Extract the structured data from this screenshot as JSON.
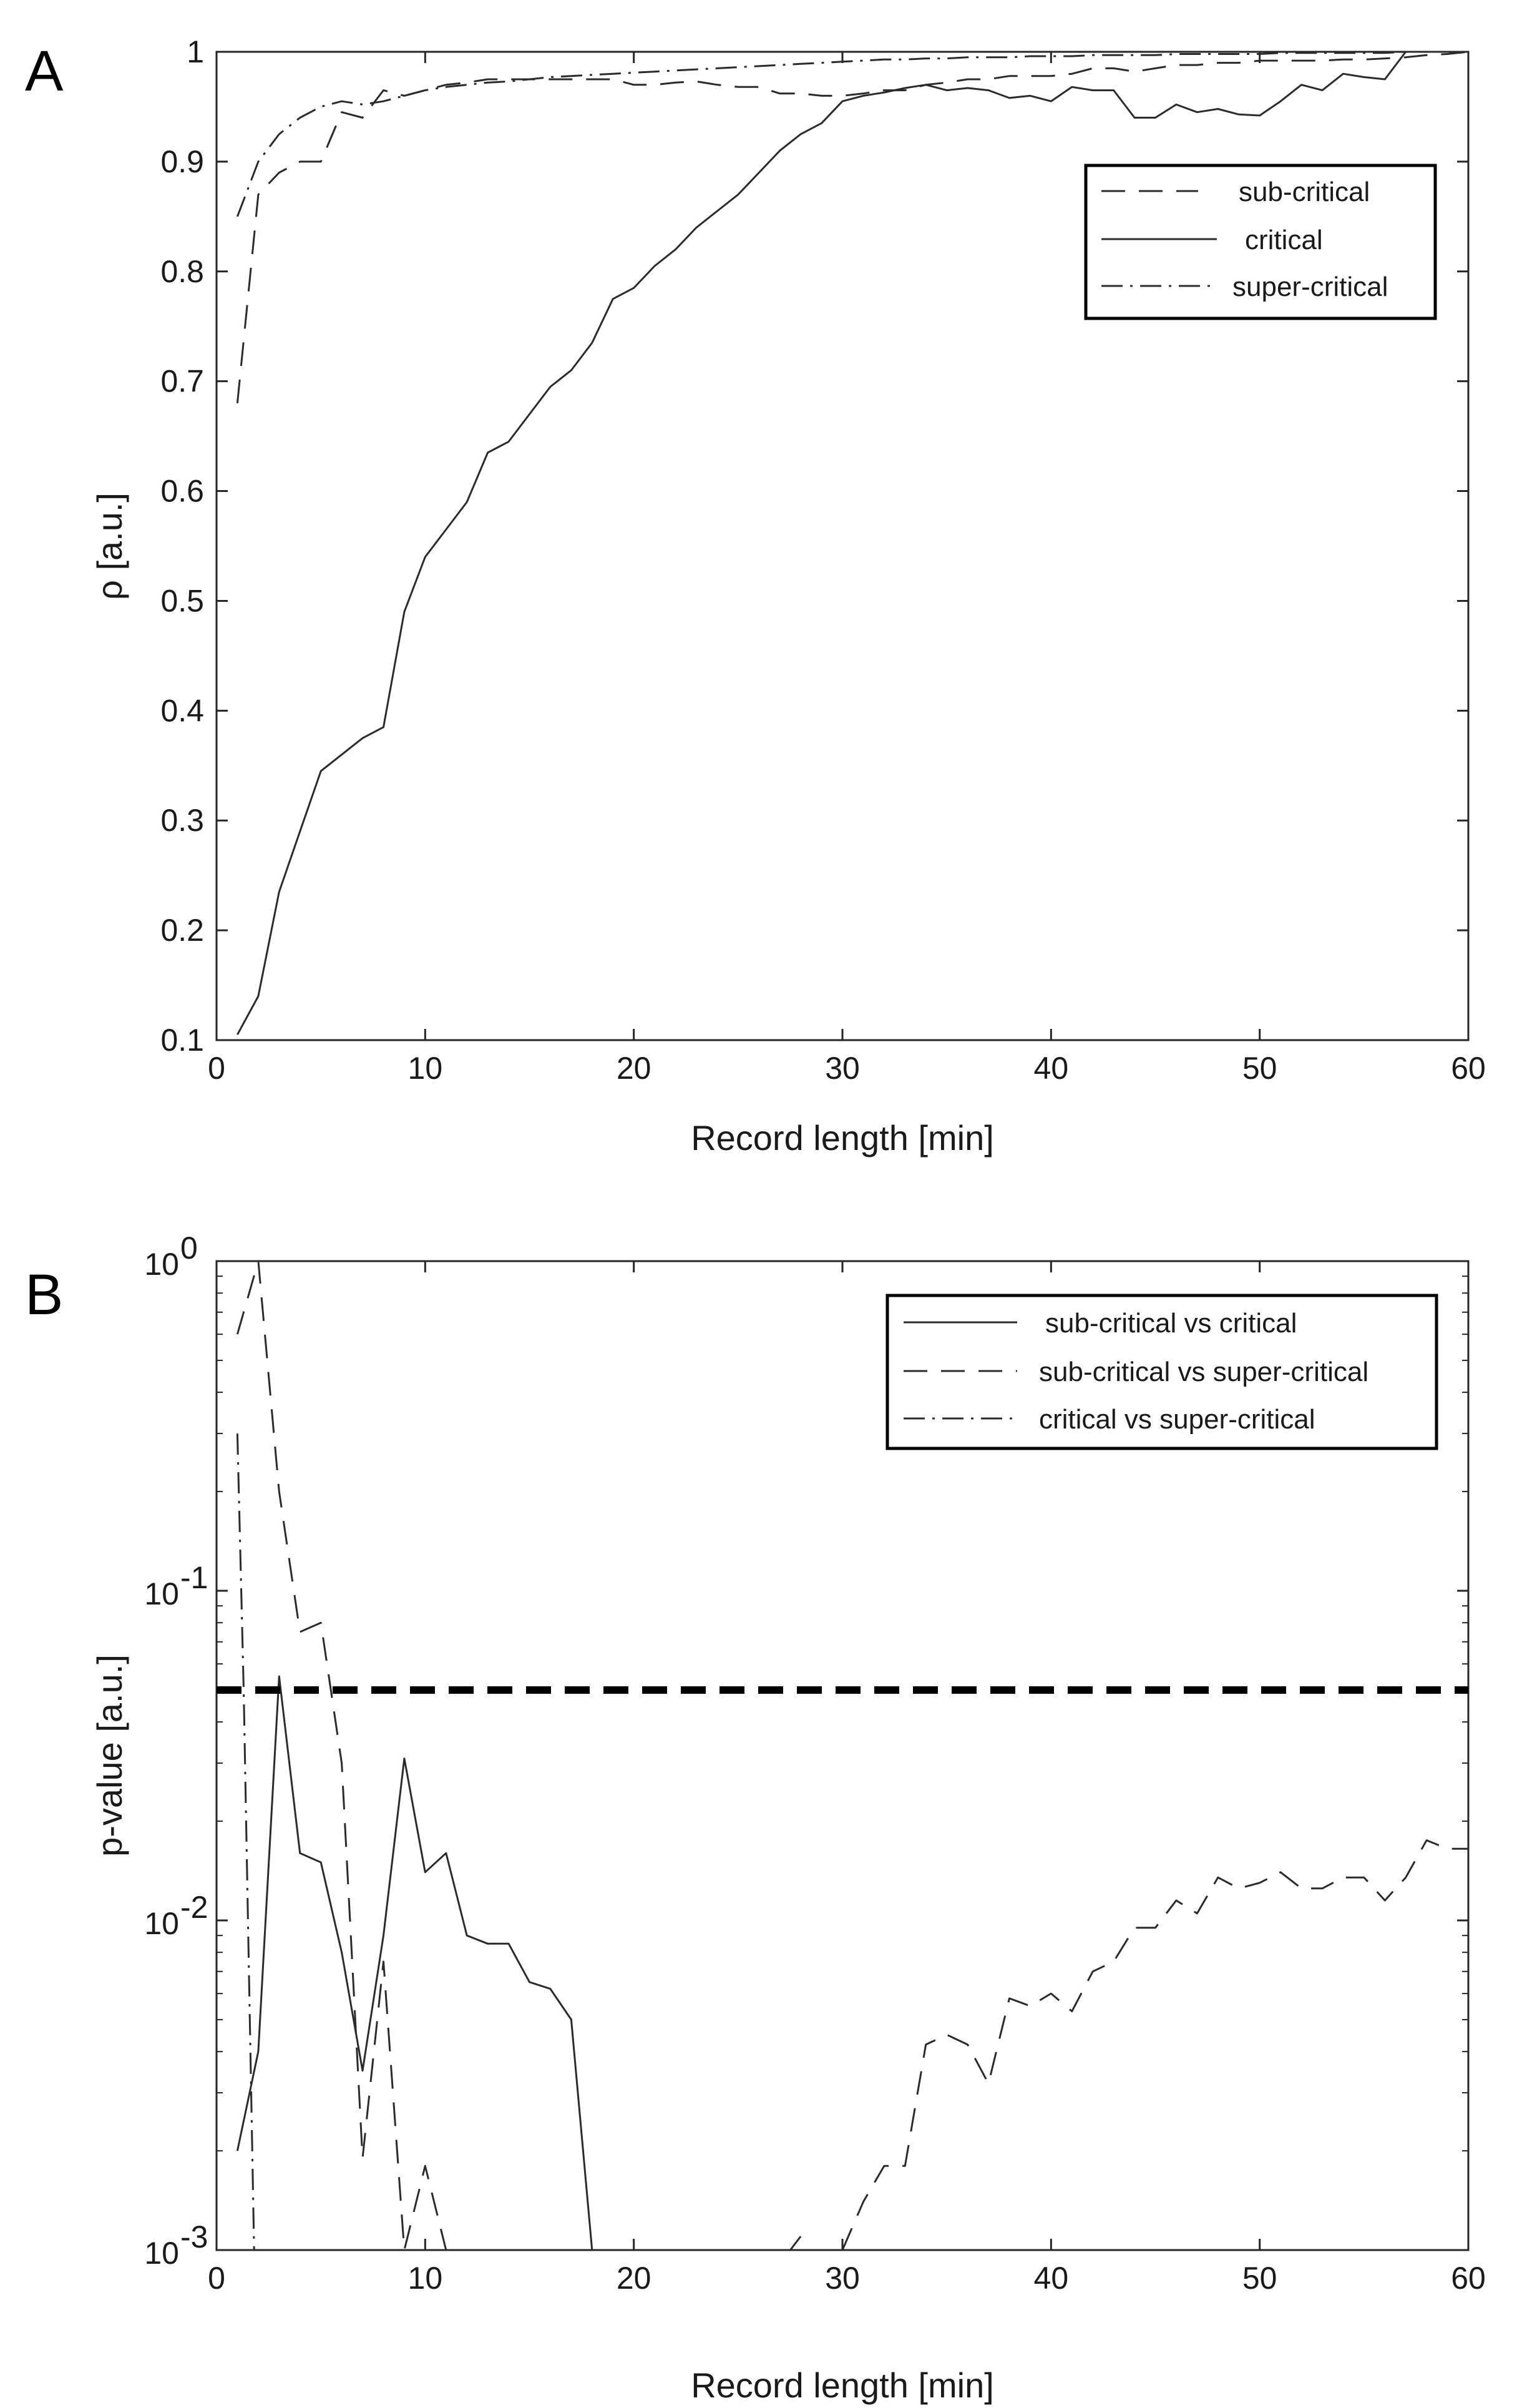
{
  "chart_data": [
    {
      "type": "line",
      "panel_label": "A",
      "xlabel": "Record length [min]",
      "ylabel": "ρ [a.u.]",
      "xlim": [
        0,
        60
      ],
      "ylim": [
        0.1,
        1
      ],
      "xticks": [
        0,
        10,
        20,
        30,
        40,
        50,
        60
      ],
      "yticks": [
        0.1,
        0.2,
        0.3,
        0.4,
        0.5,
        0.6,
        0.7,
        0.8,
        0.9,
        1
      ],
      "ytick_labels": [
        "0.1",
        "0.2",
        "0.3",
        "0.4",
        "0.5",
        "0.6",
        "0.7",
        "0.8",
        "0.9",
        "1"
      ],
      "legend_position": "top-right",
      "series": [
        {
          "name": "sub-critical",
          "style": "dashed",
          "x": [
            1,
            2,
            3,
            4,
            5,
            6,
            7,
            8,
            9,
            10,
            11,
            12,
            13,
            14,
            15,
            16,
            17,
            18,
            19,
            20,
            21,
            22,
            23,
            24,
            25,
            26,
            27,
            28,
            29,
            30,
            31,
            32,
            33,
            34,
            35,
            36,
            37,
            38,
            39,
            40,
            41,
            42,
            43,
            44,
            45,
            46,
            47,
            48,
            49,
            50,
            51,
            52,
            53,
            54,
            55,
            56,
            57,
            58,
            59,
            60
          ],
          "y": [
            0.68,
            0.87,
            0.89,
            0.9,
            0.9,
            0.945,
            0.94,
            0.965,
            0.96,
            0.965,
            0.97,
            0.972,
            0.975,
            0.975,
            0.975,
            0.975,
            0.975,
            0.975,
            0.975,
            0.97,
            0.97,
            0.972,
            0.973,
            0.97,
            0.968,
            0.968,
            0.962,
            0.962,
            0.96,
            0.96,
            0.962,
            0.965,
            0.965,
            0.97,
            0.972,
            0.975,
            0.975,
            0.978,
            0.978,
            0.978,
            0.98,
            0.985,
            0.985,
            0.982,
            0.985,
            0.988,
            0.988,
            0.99,
            0.99,
            0.992,
            0.992,
            0.992,
            0.992,
            0.993,
            0.993,
            0.994,
            0.995,
            0.997,
            0.998,
            1.0
          ]
        },
        {
          "name": "critical",
          "style": "solid",
          "x": [
            1,
            2,
            3,
            4,
            5,
            6,
            7,
            8,
            9,
            10,
            11,
            12,
            13,
            14,
            15,
            16,
            17,
            18,
            19,
            20,
            21,
            22,
            23,
            24,
            25,
            26,
            27,
            28,
            29,
            30,
            31,
            32,
            33,
            34,
            35,
            36,
            37,
            38,
            39,
            40,
            41,
            42,
            43,
            44,
            45,
            46,
            47,
            48,
            49,
            50,
            51,
            52,
            53,
            54,
            55,
            56,
            57,
            58,
            59,
            60
          ],
          "y": [
            0.105,
            0.14,
            0.235,
            0.29,
            0.345,
            0.36,
            0.375,
            0.385,
            0.49,
            0.54,
            0.565,
            0.59,
            0.635,
            0.645,
            0.67,
            0.695,
            0.71,
            0.735,
            0.775,
            0.785,
            0.805,
            0.82,
            0.84,
            0.855,
            0.87,
            0.89,
            0.91,
            0.925,
            0.935,
            0.955,
            0.96,
            0.963,
            0.967,
            0.97,
            0.965,
            0.967,
            0.965,
            0.958,
            0.96,
            0.955,
            0.968,
            0.965,
            0.965,
            0.94,
            0.94,
            0.952,
            0.945,
            0.948,
            0.943,
            0.942,
            0.955,
            0.97,
            0.965,
            0.98,
            0.977,
            0.975,
            1.0,
            1.0,
            1.0,
            1.0
          ]
        },
        {
          "name": "super-critical",
          "style": "dashdot",
          "x": [
            1,
            2,
            3,
            4,
            5,
            6,
            7,
            8,
            9,
            10,
            11,
            12,
            13,
            14,
            15,
            16,
            17,
            18,
            19,
            20,
            21,
            22,
            23,
            24,
            25,
            26,
            27,
            28,
            29,
            30,
            31,
            32,
            33,
            34,
            35,
            36,
            37,
            38,
            39,
            40,
            41,
            42,
            43,
            44,
            45,
            46,
            47,
            48,
            49,
            50,
            51,
            52,
            53,
            54,
            55,
            56,
            57,
            58,
            59,
            60
          ],
          "y": [
            0.85,
            0.9,
            0.925,
            0.94,
            0.95,
            0.955,
            0.952,
            0.955,
            0.96,
            0.965,
            0.968,
            0.97,
            0.972,
            0.973,
            0.975,
            0.977,
            0.978,
            0.979,
            0.98,
            0.981,
            0.982,
            0.983,
            0.984,
            0.985,
            0.986,
            0.987,
            0.988,
            0.989,
            0.99,
            0.991,
            0.992,
            0.993,
            0.993,
            0.994,
            0.994,
            0.995,
            0.995,
            0.995,
            0.996,
            0.996,
            0.996,
            0.997,
            0.997,
            0.997,
            0.997,
            0.998,
            0.998,
            0.998,
            0.998,
            0.998,
            0.999,
            0.999,
            0.999,
            0.999,
            0.999,
            0.999,
            1.0,
            1.0,
            1.0,
            1.0
          ]
        }
      ]
    },
    {
      "type": "line",
      "panel_label": "B",
      "xlabel": "Record length [min]",
      "ylabel": "p-value [a.u.]",
      "yscale": "log",
      "xlim": [
        0,
        60
      ],
      "ylim": [
        0.001,
        1
      ],
      "xticks": [
        0,
        10,
        20,
        30,
        40,
        50,
        60
      ],
      "yticks": [
        0.001,
        0.01,
        0.1,
        1
      ],
      "ytick_labels": [
        {
          "base": "10",
          "exp": "-3"
        },
        {
          "base": "10",
          "exp": "-2"
        },
        {
          "base": "10",
          "exp": "-1"
        },
        {
          "base": "10",
          "exp": "0"
        }
      ],
      "threshold": 0.05,
      "legend_position": "top-right",
      "series": [
        {
          "name": "sub-critical vs critical",
          "style": "solid",
          "x": [
            1,
            2,
            3,
            4,
            5,
            6,
            7,
            8,
            9,
            10,
            11,
            12,
            13,
            14,
            15,
            16,
            17,
            18
          ],
          "y": [
            0.002,
            0.004,
            0.055,
            0.016,
            0.015,
            0.008,
            0.0035,
            0.009,
            0.031,
            0.014,
            0.016,
            0.009,
            0.0085,
            0.0085,
            0.0065,
            0.0062,
            0.005,
            0.001
          ]
        },
        {
          "name": "sub-critical vs super-critical",
          "style": "dashed",
          "segments": [
            {
              "x": [
                1,
                2,
                3,
                4,
                5,
                6,
                7,
                8,
                9,
                10,
                11
              ],
              "y": [
                0.6,
                1.0,
                0.2,
                0.075,
                0.08,
                0.03,
                0.0019,
                0.0075,
                0.001,
                0.0018,
                0.001
              ]
            },
            {
              "x": [
                27.5,
                28
              ],
              "y": [
                0.001,
                0.0011
              ]
            },
            {
              "x": [
                30,
                31,
                32,
                33,
                34,
                35,
                36,
                37,
                38,
                39,
                40,
                41,
                42,
                43,
                44,
                45,
                46,
                47,
                48,
                49,
                50,
                51,
                52,
                53,
                54,
                55,
                56,
                57,
                58,
                59,
                60
              ],
              "y": [
                0.001,
                0.0014,
                0.0018,
                0.0018,
                0.0042,
                0.0045,
                0.0042,
                0.0032,
                0.0058,
                0.0055,
                0.006,
                0.0053,
                0.007,
                0.0075,
                0.0095,
                0.0095,
                0.0115,
                0.0105,
                0.0135,
                0.0125,
                0.013,
                0.014,
                0.0125,
                0.0125,
                0.0135,
                0.0135,
                0.0115,
                0.0135,
                0.0175,
                0.0165,
                0.0165
              ]
            }
          ]
        },
        {
          "name": "critical vs super-critical",
          "style": "dashdot",
          "x": [
            1,
            1.3,
            1.8
          ],
          "y": [
            0.3,
            0.05,
            0.001
          ]
        }
      ]
    }
  ]
}
